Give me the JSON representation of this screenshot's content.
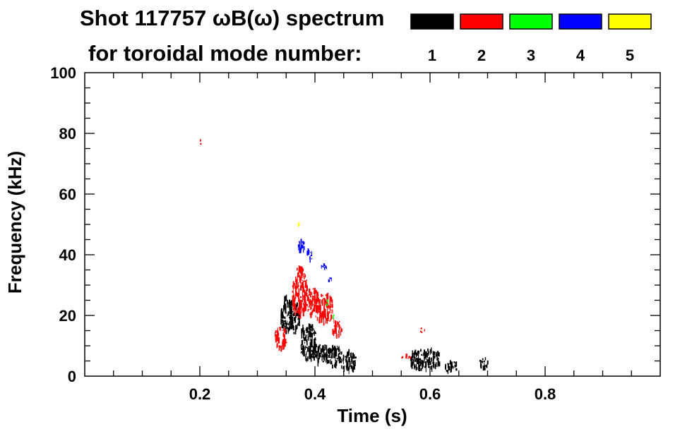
{
  "chart_data": {
    "type": "heatmap",
    "title_line1": "Shot 117757 ωB(ω) spectrum",
    "title_line2": "for toroidal mode number:",
    "xlabel": "Time (s)",
    "ylabel": "Frequency (kHz)",
    "xlim": [
      0.0,
      1.0
    ],
    "ylim": [
      0,
      100
    ],
    "x_ticks": [
      0.2,
      0.4,
      0.6,
      0.8
    ],
    "x_tick_labels": [
      "0.2",
      "0.4",
      "0.6",
      "0.8"
    ],
    "x_minor_step": 0.05,
    "y_ticks": [
      0,
      20,
      40,
      60,
      80,
      100
    ],
    "y_tick_labels": [
      "0",
      "20",
      "40",
      "60",
      "80",
      "100"
    ],
    "y_minor_step": 5,
    "grid": false,
    "legend": {
      "placement": "top-right",
      "entries": [
        {
          "label": "1",
          "color": "#000000"
        },
        {
          "label": "2",
          "color": "#ff0000"
        },
        {
          "label": "3",
          "color": "#00ff00"
        },
        {
          "label": "4",
          "color": "#0000ff"
        },
        {
          "label": "5",
          "color": "#ffff00"
        }
      ]
    },
    "series": [
      {
        "mode": "1",
        "color": "#000000",
        "blobs": [
          {
            "t0": 0.34,
            "t1": 0.36,
            "f0": 14,
            "f1": 26
          },
          {
            "t0": 0.355,
            "t1": 0.375,
            "f0": 14,
            "f1": 24
          },
          {
            "t0": 0.375,
            "t1": 0.4,
            "f0": 5,
            "f1": 18
          },
          {
            "t0": 0.395,
            "t1": 0.42,
            "f0": 4,
            "f1": 11
          },
          {
            "t0": 0.42,
            "t1": 0.445,
            "f0": 3,
            "f1": 10
          },
          {
            "t0": 0.445,
            "t1": 0.47,
            "f0": 1,
            "f1": 8
          },
          {
            "t0": 0.565,
            "t1": 0.615,
            "f0": 2,
            "f1": 9
          },
          {
            "t0": 0.625,
            "t1": 0.645,
            "f0": 1,
            "f1": 5
          },
          {
            "t0": 0.685,
            "t1": 0.7,
            "f0": 2,
            "f1": 6
          }
        ]
      },
      {
        "mode": "2",
        "color": "#ff0000",
        "blobs": [
          {
            "t0": 0.199,
            "t1": 0.201,
            "f0": 76,
            "f1": 78
          },
          {
            "t0": 0.33,
            "t1": 0.35,
            "f0": 9,
            "f1": 16
          },
          {
            "t0": 0.36,
            "t1": 0.385,
            "f0": 19,
            "f1": 36
          },
          {
            "t0": 0.38,
            "t1": 0.405,
            "f0": 20,
            "f1": 29
          },
          {
            "t0": 0.4,
            "t1": 0.43,
            "f0": 17,
            "f1": 27
          },
          {
            "t0": 0.43,
            "t1": 0.445,
            "f0": 13,
            "f1": 19
          },
          {
            "t0": 0.55,
            "t1": 0.565,
            "f0": 5,
            "f1": 7
          },
          {
            "t0": 0.582,
            "t1": 0.59,
            "f0": 14,
            "f1": 16
          }
        ]
      },
      {
        "mode": "3",
        "color": "#00ff00",
        "blobs": [
          {
            "t0": 0.418,
            "t1": 0.422,
            "f0": 23,
            "f1": 25
          },
          {
            "t0": 0.43,
            "t1": 0.434,
            "f0": 19,
            "f1": 20
          }
        ]
      },
      {
        "mode": "4",
        "color": "#0000ff",
        "blobs": [
          {
            "t0": 0.37,
            "t1": 0.38,
            "f0": 40,
            "f1": 45
          },
          {
            "t0": 0.385,
            "t1": 0.395,
            "f0": 38,
            "f1": 42
          },
          {
            "t0": 0.41,
            "t1": 0.42,
            "f0": 35,
            "f1": 37
          },
          {
            "t0": 0.422,
            "t1": 0.428,
            "f0": 31,
            "f1": 33
          }
        ]
      },
      {
        "mode": "5",
        "color": "#ffff00",
        "blobs": [
          {
            "t0": 0.369,
            "t1": 0.373,
            "f0": 49,
            "f1": 51
          }
        ]
      }
    ]
  }
}
